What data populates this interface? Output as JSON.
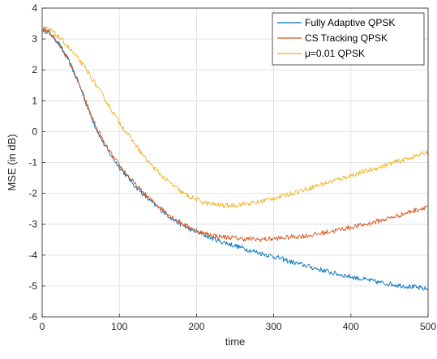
{
  "chart_data": {
    "type": "line",
    "title": "",
    "xlabel": "time",
    "ylabel": "MSE (in dB)",
    "xlim": [
      0,
      500
    ],
    "ylim": [
      -6,
      4
    ],
    "xticks": [
      0,
      100,
      200,
      300,
      400,
      500
    ],
    "yticks": [
      -6,
      -5,
      -4,
      -3,
      -2,
      -1,
      0,
      1,
      2,
      3,
      4
    ],
    "grid": true,
    "legend_position": "top-right",
    "series": [
      {
        "name": "Fully Adaptive QPSK",
        "color": "#0072BD",
        "x": [
          1,
          10,
          20,
          30,
          40,
          50,
          60,
          70,
          80,
          90,
          100,
          110,
          120,
          130,
          140,
          150,
          160,
          170,
          180,
          190,
          200,
          210,
          220,
          230,
          240,
          250,
          260,
          270,
          280,
          290,
          300,
          310,
          320,
          330,
          340,
          350,
          360,
          370,
          380,
          390,
          400,
          410,
          420,
          430,
          440,
          450,
          460,
          470,
          480,
          490,
          500
        ],
        "y": [
          3.3,
          3.2,
          2.9,
          2.5,
          2.0,
          1.4,
          0.7,
          0.1,
          -0.4,
          -0.8,
          -1.15,
          -1.45,
          -1.75,
          -2.0,
          -2.25,
          -2.45,
          -2.65,
          -2.85,
          -3.0,
          -3.15,
          -3.25,
          -3.35,
          -3.45,
          -3.55,
          -3.62,
          -3.7,
          -3.77,
          -3.85,
          -3.92,
          -3.98,
          -4.05,
          -4.12,
          -4.2,
          -4.27,
          -4.33,
          -4.4,
          -4.47,
          -4.53,
          -4.6,
          -4.65,
          -4.7,
          -4.75,
          -4.8,
          -4.85,
          -4.9,
          -4.93,
          -4.97,
          -5.0,
          -5.03,
          -5.07,
          -5.1
        ]
      },
      {
        "name": "CS Tracking QPSK",
        "color": "#D95319",
        "x": [
          1,
          10,
          20,
          30,
          40,
          50,
          60,
          70,
          80,
          90,
          100,
          110,
          120,
          130,
          140,
          150,
          160,
          170,
          180,
          190,
          200,
          210,
          220,
          230,
          240,
          250,
          260,
          270,
          280,
          290,
          300,
          310,
          320,
          330,
          340,
          350,
          360,
          370,
          380,
          390,
          400,
          410,
          420,
          430,
          440,
          450,
          460,
          470,
          480,
          490,
          500
        ],
        "y": [
          3.3,
          3.2,
          2.9,
          2.5,
          2.0,
          1.4,
          0.75,
          0.15,
          -0.35,
          -0.75,
          -1.1,
          -1.4,
          -1.7,
          -1.95,
          -2.2,
          -2.4,
          -2.6,
          -2.8,
          -2.95,
          -3.1,
          -3.2,
          -3.3,
          -3.35,
          -3.4,
          -3.42,
          -3.45,
          -3.47,
          -3.48,
          -3.5,
          -3.48,
          -3.47,
          -3.45,
          -3.42,
          -3.4,
          -3.38,
          -3.35,
          -3.3,
          -3.25,
          -3.2,
          -3.15,
          -3.1,
          -3.05,
          -3.0,
          -2.93,
          -2.87,
          -2.8,
          -2.73,
          -2.65,
          -2.57,
          -2.5,
          -2.4
        ]
      },
      {
        "name": "μ=0.01 QPSK",
        "color": "#EDB120",
        "x": [
          1,
          10,
          20,
          30,
          40,
          50,
          60,
          70,
          80,
          90,
          100,
          110,
          120,
          130,
          140,
          150,
          160,
          170,
          180,
          190,
          200,
          210,
          220,
          230,
          240,
          250,
          260,
          270,
          280,
          290,
          300,
          310,
          320,
          330,
          340,
          350,
          360,
          370,
          380,
          390,
          400,
          410,
          420,
          430,
          440,
          450,
          460,
          470,
          480,
          490,
          500
        ],
        "y": [
          3.35,
          3.3,
          3.1,
          2.85,
          2.55,
          2.25,
          1.9,
          1.5,
          1.1,
          0.7,
          0.3,
          -0.05,
          -0.4,
          -0.75,
          -1.05,
          -1.3,
          -1.55,
          -1.75,
          -1.95,
          -2.1,
          -2.2,
          -2.3,
          -2.35,
          -2.38,
          -2.4,
          -2.38,
          -2.35,
          -2.32,
          -2.28,
          -2.22,
          -2.15,
          -2.1,
          -2.02,
          -1.95,
          -1.88,
          -1.8,
          -1.72,
          -1.65,
          -1.57,
          -1.5,
          -1.42,
          -1.35,
          -1.28,
          -1.2,
          -1.13,
          -1.05,
          -0.97,
          -0.9,
          -0.82,
          -0.75,
          -0.65
        ]
      }
    ]
  }
}
